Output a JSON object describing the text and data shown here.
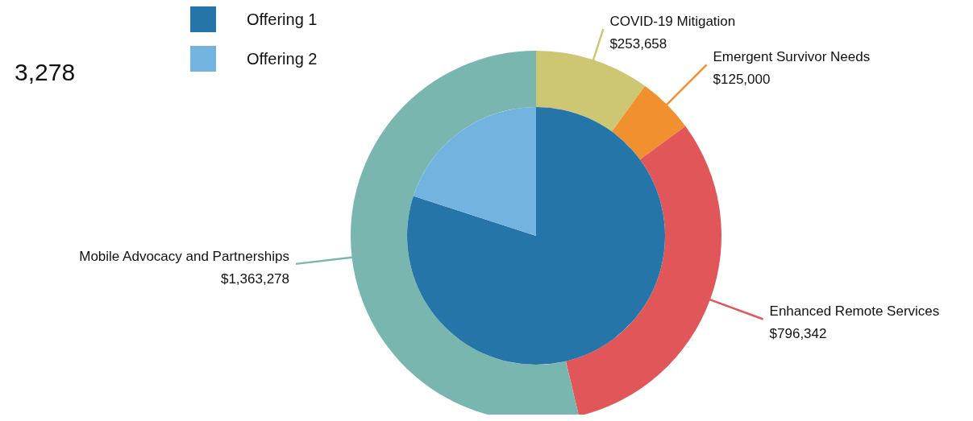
{
  "chart_data": [
    {
      "type": "donut",
      "categories": [
        "COVID-19 Mitigation",
        "Emergent Survivor Needs",
        "Enhanced Remote Services",
        "Mobile Advocacy and Partnerships"
      ],
      "values": [
        253658,
        125000,
        796342,
        1363278
      ],
      "colors": [
        "#cdc673",
        "#f0902f",
        "#e15759",
        "#7ab6b0"
      ],
      "data_labels": true,
      "value_labels": [
        "$253,658",
        "$125,000",
        "$796,342",
        "$1,363,278"
      ],
      "annotations": [
        "3,278"
      ]
    },
    {
      "type": "pie",
      "categories": [
        "Offering 1",
        "Offering 2"
      ],
      "values": [
        80,
        20
      ],
      "colors": [
        "#2675a8",
        "#72b3df"
      ],
      "legend": "top left"
    }
  ]
}
